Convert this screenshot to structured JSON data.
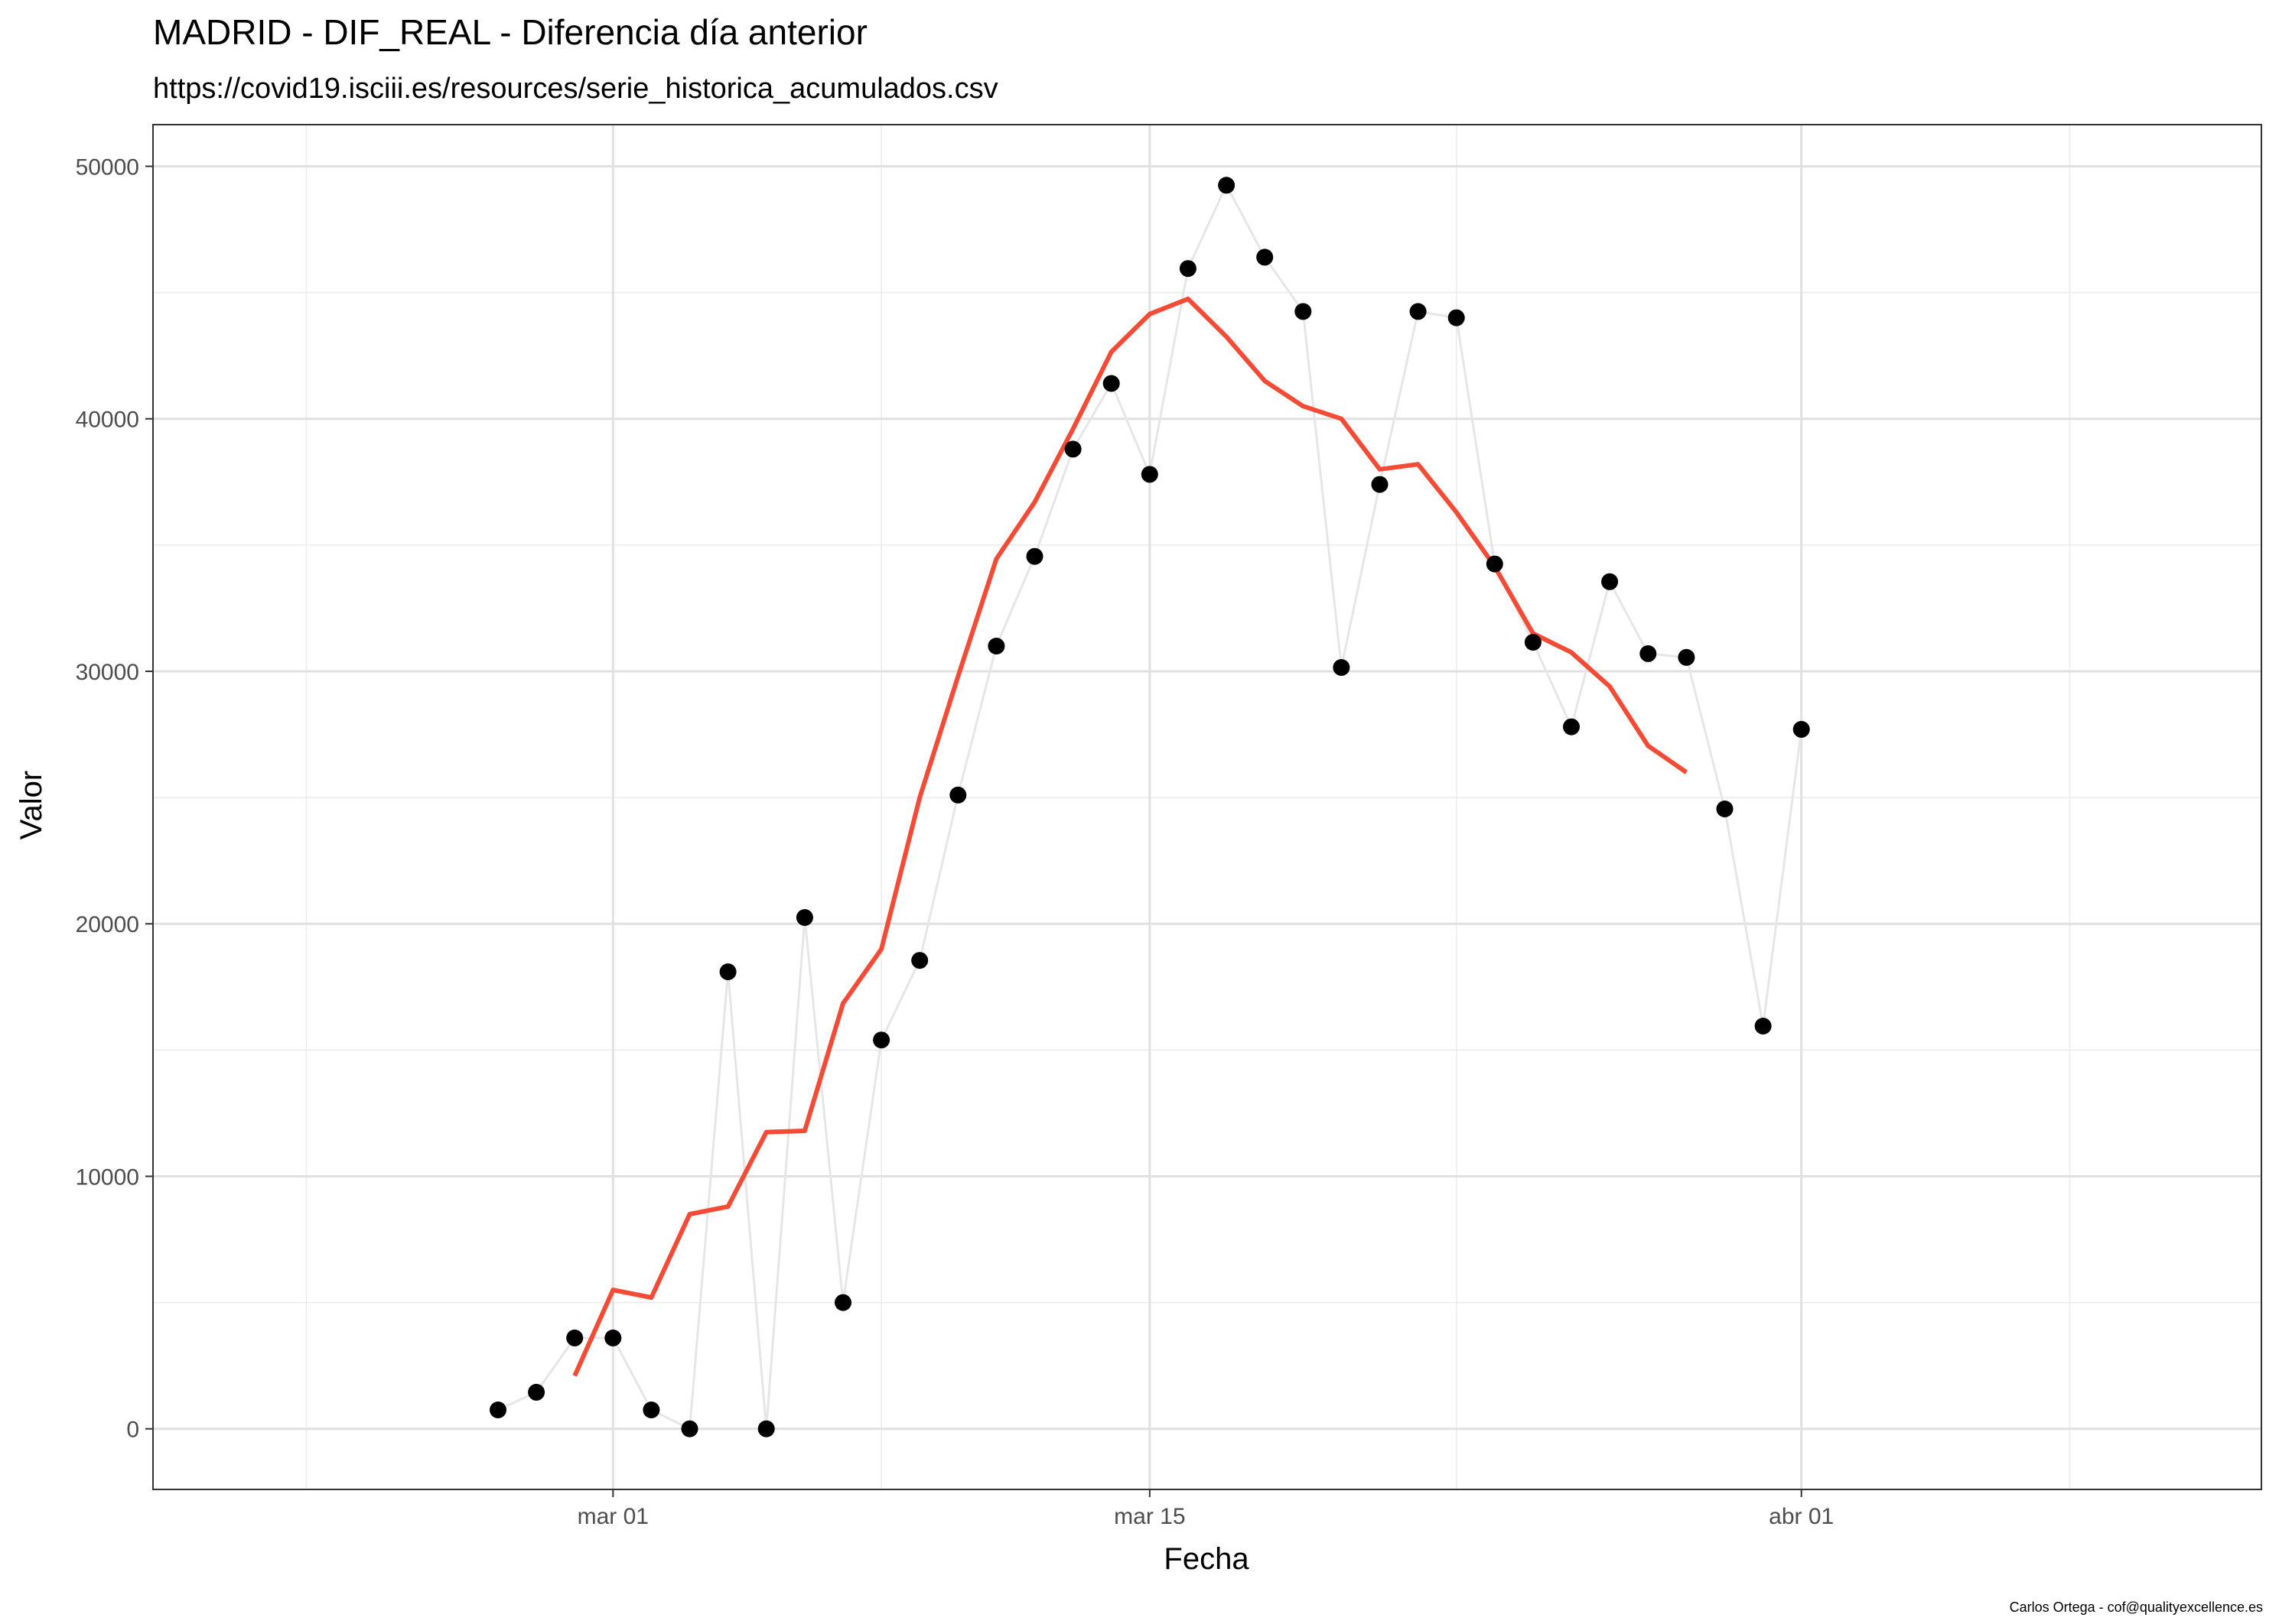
{
  "chart_data": {
    "type": "line",
    "title": "MADRID - DIF_REAL - Diferencia día anterior",
    "subtitle": "https://covid19.isciii.es/resources/serie_historica_acumulados.csv",
    "xlabel": "Fecha",
    "ylabel": "Valor",
    "caption": "Carlos Ortega - cof@qualityexcellence.es",
    "x_tick_labels": [
      "mar 01",
      "mar 15",
      "abr 01"
    ],
    "y_tick_labels": [
      "0",
      "10000",
      "20000",
      "30000",
      "40000",
      "50000"
    ],
    "xlim": [
      "2020-02-18",
      "2020-04-13"
    ],
    "ylim": [
      -2400,
      51650
    ],
    "grid": true,
    "legend": "none",
    "series": [
      {
        "style": "points",
        "line_color": "#e6e6e6",
        "point_color": "#000000",
        "x": [
          "2020-02-27",
          "2020-02-28",
          "2020-02-29",
          "2020-03-01",
          "2020-03-02",
          "2020-03-03",
          "2020-03-04",
          "2020-03-05",
          "2020-03-06",
          "2020-03-07",
          "2020-03-08",
          "2020-03-09",
          "2020-03-10",
          "2020-03-11",
          "2020-03-12",
          "2020-03-13",
          "2020-03-14",
          "2020-03-15",
          "2020-03-16",
          "2020-03-17",
          "2020-03-18",
          "2020-03-19",
          "2020-03-20",
          "2020-03-21",
          "2020-03-22",
          "2020-03-23",
          "2020-03-24",
          "2020-03-25",
          "2020-03-26",
          "2020-03-27",
          "2020-03-28",
          "2020-03-29",
          "2020-03-30",
          "2020-03-31",
          "2020-04-01"
        ],
        "values": [
          750,
          1450,
          3600,
          3600,
          750,
          0,
          18100,
          0,
          20250,
          5000,
          15400,
          18550,
          25100,
          31000,
          34550,
          38800,
          41400,
          37800,
          45950,
          49250,
          46400,
          44250,
          30150,
          37400,
          44250,
          44000,
          34250,
          31150,
          27800,
          33550,
          30700,
          30550,
          24550,
          15950,
          27700
        ]
      },
      {
        "style": "line",
        "color": "#f44b36",
        "x": [
          "2020-02-29",
          "2020-03-01",
          "2020-03-02",
          "2020-03-03",
          "2020-03-04",
          "2020-03-05",
          "2020-03-06",
          "2020-03-07",
          "2020-03-08",
          "2020-03-09",
          "2020-03-10",
          "2020-03-11",
          "2020-03-12",
          "2020-03-13",
          "2020-03-14",
          "2020-03-15",
          "2020-03-16",
          "2020-03-17",
          "2020-03-18",
          "2020-03-19",
          "2020-03-20",
          "2020-03-21",
          "2020-03-22",
          "2020-03-23",
          "2020-03-24",
          "2020-03-25",
          "2020-03-26",
          "2020-03-27",
          "2020-03-28",
          "2020-03-29",
          "2020-03-30"
        ],
        "values": [
          2100,
          5500,
          5200,
          8500,
          8800,
          11750,
          11800,
          16850,
          19000,
          25000,
          29800,
          34450,
          36700,
          39600,
          42650,
          44150,
          44750,
          43250,
          41500,
          40500,
          40000,
          38000,
          38200,
          36300,
          34150,
          31500,
          30750,
          29400,
          27050,
          26000,
          null
        ]
      }
    ]
  }
}
